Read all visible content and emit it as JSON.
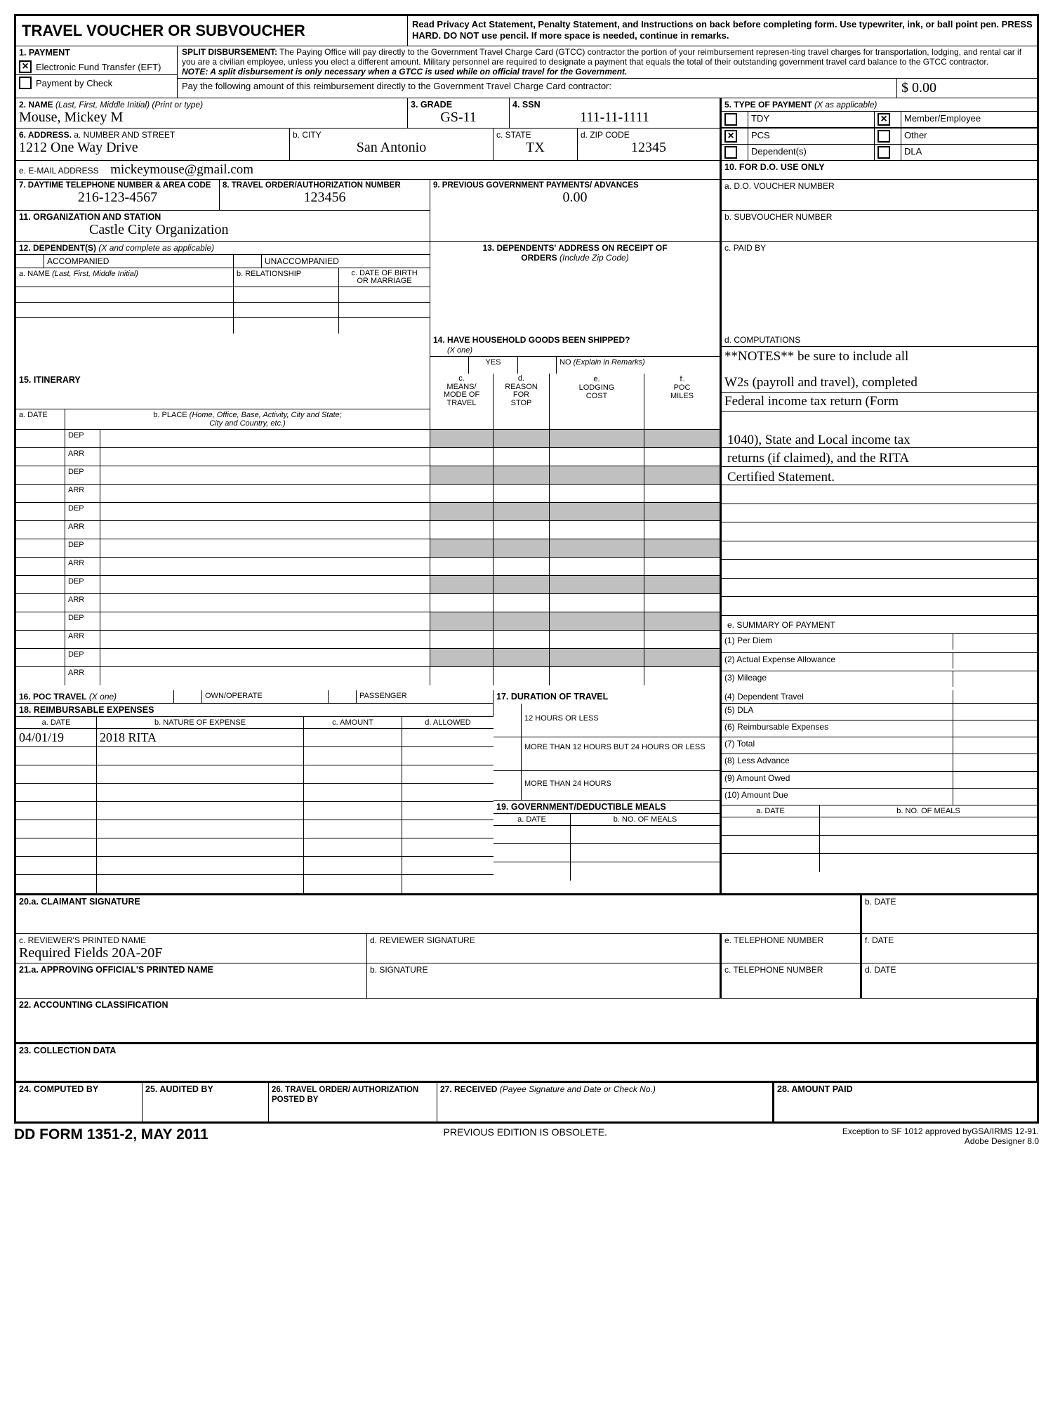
{
  "header": {
    "title": "TRAVEL VOUCHER OR SUBVOUCHER",
    "instructions": "Read Privacy Act Statement, Penalty Statement, and Instructions on back before completing form.  Use typewriter, ink, or ball point pen.  PRESS HARD.  DO NOT use  pencil.  If more space is needed, continue in remarks."
  },
  "section1": {
    "label": "1. PAYMENT",
    "eft_checked": true,
    "eft_label": "Electronic Fund Transfer (EFT)",
    "check_checked": false,
    "check_label": "Payment by Check",
    "split_title": "SPLIT DISBURSEMENT:",
    "split_text": " The Paying Office will pay directly to the Government Travel Charge Card (GTCC) contractor the portion of your reimbursement represen-ting travel charges for transportation, lodging, and rental car if you are a civilian employee, unless you elect a different amount.  Military personnel are required to designate a payment that equals the total of their outstanding government travel card balance to the GTCC contractor.",
    "split_note": "NOTE:  A split disbursement is only necessary when a GTCC is used while on official travel for the Government.",
    "pay_label": "Pay the following amount of this reimbursement directly to the Government Travel Charge Card contractor:",
    "pay_amount": "$ 0.00"
  },
  "section2": {
    "label": "2. NAME (Last, First, Middle Initial) (Print or type)",
    "value": "Mouse, Mickey M"
  },
  "section3": {
    "label": "3. GRADE",
    "value": "GS-11"
  },
  "section4": {
    "label": "4. SSN",
    "value": "111-11-1111"
  },
  "section5": {
    "label": "5. TYPE OF PAYMENT (X as applicable)",
    "tdy": "TDY",
    "member": "Member/Employee",
    "pcs": "PCS",
    "other": "Other",
    "dep": "Dependent(s)",
    "dla": "DLA",
    "tdy_checked": false,
    "member_checked": true,
    "pcs_checked": true,
    "other_checked": false,
    "dep_checked": false,
    "dla_checked": false
  },
  "section6": {
    "label": "6. ADDRESS.  a. NUMBER AND STREET",
    "street": "1212 One Way Drive",
    "city_label": "b. CITY",
    "city": "San Antonio",
    "state_label": "c. STATE",
    "state": "TX",
    "zip_label": "d. ZIP CODE",
    "zip": "12345"
  },
  "email": {
    "label": "e. E-MAIL ADDRESS",
    "value": "mickeymouse@gmail.com"
  },
  "section7": {
    "label": "7. DAYTIME TELEPHONE NUMBER & AREA CODE",
    "value": "216-123-4567"
  },
  "section8": {
    "label": "8. TRAVEL ORDER/AUTHORIZATION NUMBER",
    "value": "123456"
  },
  "section9": {
    "label": "9.  PREVIOUS GOVERNMENT PAYMENTS/ ADVANCES",
    "value": "0.00"
  },
  "section10": {
    "label": "10.  FOR D.O. USE ONLY",
    "a": "a.  D.O. VOUCHER NUMBER",
    "b": "b.  SUBVOUCHER NUMBER",
    "c": "c.  PAID BY",
    "d": "d.  COMPUTATIONS",
    "e": "e.  SUMMARY OF PAYMENT"
  },
  "section11": {
    "label": "11. ORGANIZATION AND STATION",
    "value": "Castle City Organization"
  },
  "section12": {
    "label": "12. DEPENDENT(S) (X and complete as applicable)",
    "acc": "ACCOMPANIED",
    "unacc": "UNACCOMPANIED",
    "a": "a. NAME (Last, First, Middle Initial)",
    "b": "b. RELATIONSHIP",
    "c": "c. DATE OF BIRTH OR MARRIAGE"
  },
  "section13": {
    "label": "13. DEPENDENTS' ADDRESS ON RECEIPT OF ORDERS (Include Zip Code)"
  },
  "section14": {
    "label": "14. HAVE HOUSEHOLD GOODS BEEN SHIPPED?",
    "xone": "(X one)",
    "yes": "YES",
    "no": "NO (Explain in Remarks)"
  },
  "notes": "**NOTES** be sure to include all W2s (payroll and travel), completed Federal income tax return (Form 1040), State and Local income tax returns (if claimed), and the RITA Certified Statement.",
  "section15": {
    "label": "15. ITINERARY",
    "a": "a. DATE",
    "b": "b. PLACE (Home, Office, Base, Activity, City and State; City and Country, etc.)",
    "c": "c. MEANS/ MODE OF TRAVEL",
    "d": "d. REASON FOR STOP",
    "e": "e. LODGING COST",
    "f": "f. POC MILES",
    "dep": "DEP",
    "arr": "ARR"
  },
  "section16": {
    "label": "16. POC TRAVEL (X one)",
    "own": "OWN/OPERATE",
    "pass": "PASSENGER"
  },
  "section17": {
    "label": "17. DURATION OF TRAVEL",
    "a": "12 HOURS OR LESS",
    "b": "MORE THAN 12 HOURS BUT 24 HOURS OR LESS",
    "c": "MORE THAN 24 HOURS"
  },
  "section18": {
    "label": "18. REIMBURSABLE EXPENSES",
    "a": "a. DATE",
    "b": "b. NATURE OF EXPENSE",
    "c": "c. AMOUNT",
    "d": "d. ALLOWED",
    "row1_date": "04/01/19",
    "row1_nature": "2018 RITA"
  },
  "section19": {
    "label": "19. GOVERNMENT/DEDUCTIBLE MEALS",
    "date": "a.  DATE",
    "meals": "b.  NO. OF MEALS"
  },
  "summary": {
    "1": "(1)  Per Diem",
    "2": "(2)  Actual Expense Allowance",
    "3": "(3)  Mileage",
    "4": "(4)  Dependent Travel",
    "5": "(5)  DLA",
    "6": "(6)  Reimbursable Expenses",
    "7": "(7)  Total",
    "8": "(8)  Less Advance",
    "9": "(9)  Amount Owed",
    "10": "(10) Amount Due"
  },
  "section20": {
    "a": "20.a. CLAIMANT SIGNATURE",
    "b": "b. DATE",
    "c": "c.  REVIEWER'S PRINTED NAME",
    "c_val": "Required Fields 20A-20F",
    "d": "d.  REVIEWER SIGNATURE",
    "e": "e.  TELEPHONE NUMBER",
    "f": "f. DATE"
  },
  "section21": {
    "a": "21.a. APPROVING OFFICIAL'S PRINTED NAME",
    "b": "b.  SIGNATURE",
    "c": "c.  TELEPHONE NUMBER",
    "d": "d. DATE"
  },
  "section22": {
    "label": "22. ACCOUNTING CLASSIFICATION"
  },
  "section23": {
    "label": "23. COLLECTION DATA"
  },
  "section24": {
    "label": "24. COMPUTED BY"
  },
  "section25": {
    "label": "25. AUDITED BY"
  },
  "section26": {
    "label": "26. TRAVEL ORDER/ AUTHORIZATION POSTED BY"
  },
  "section27": {
    "label": "27. RECEIVED (Payee Signature and Date or Check No.)"
  },
  "section28": {
    "label": "28. AMOUNT PAID"
  },
  "footer": {
    "left": "DD FORM 1351-2, MAY 2011",
    "center": "PREVIOUS EDITION IS OBSOLETE.",
    "right1": "Exception to SF 1012 approved byGSA/IRMS 12-91.",
    "right2": "Adobe Designer 8.0"
  }
}
